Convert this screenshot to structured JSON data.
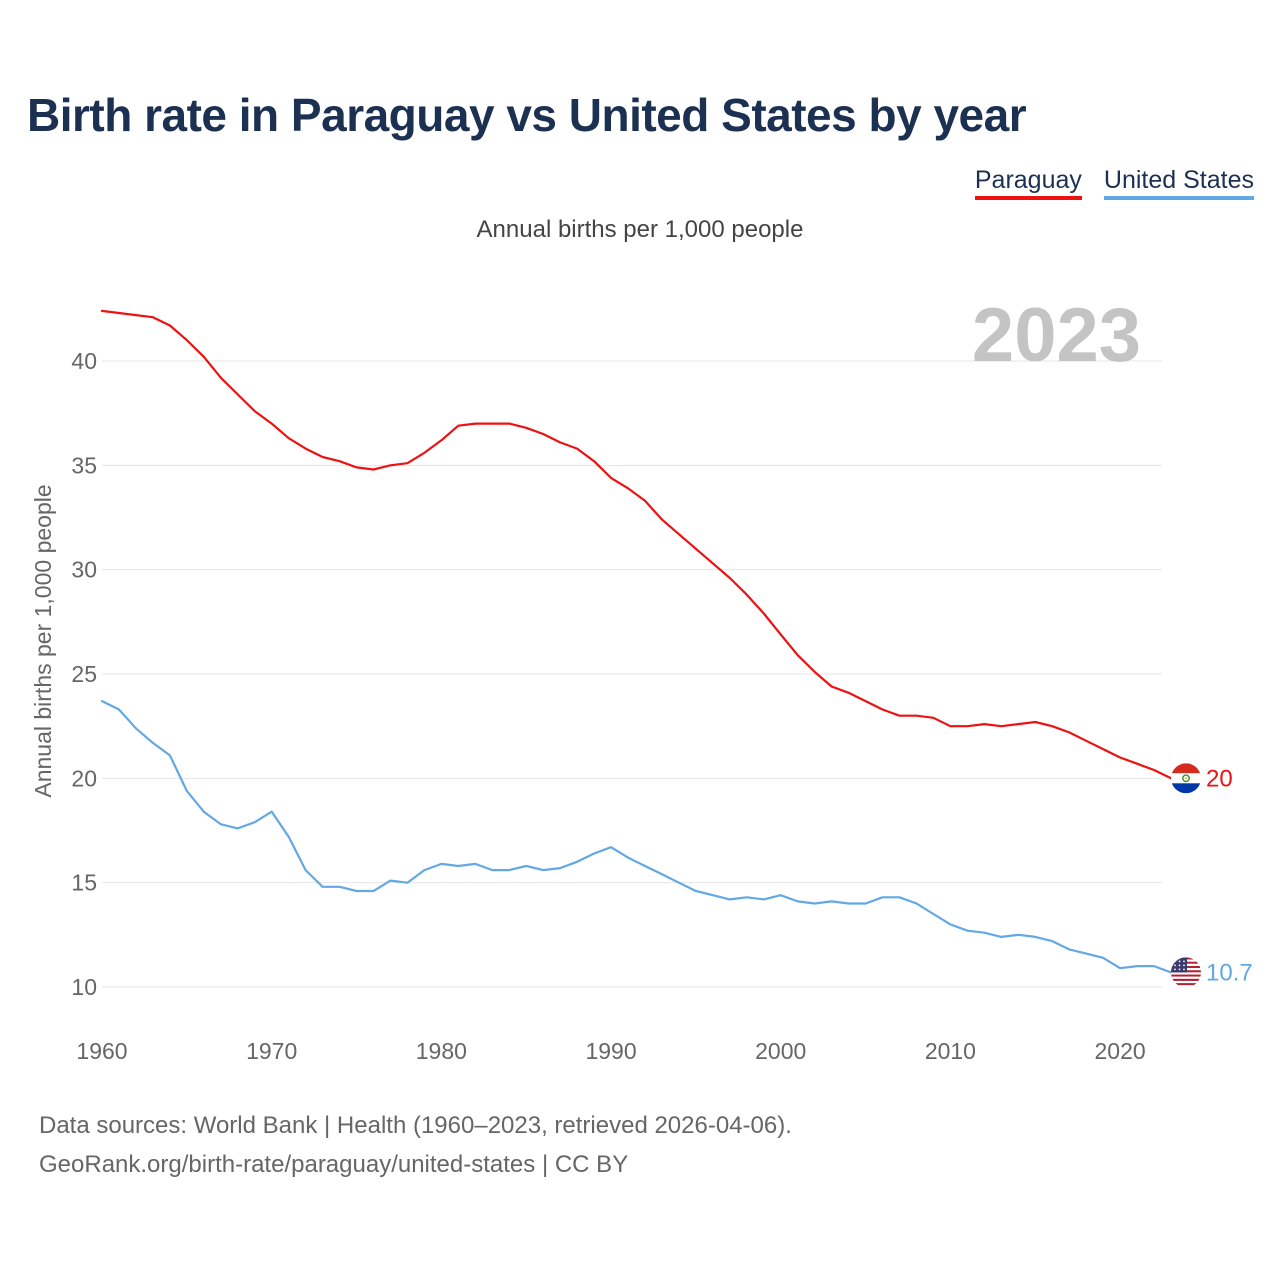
{
  "title": "Birth rate in Paraguay vs United States by year",
  "subtitle": "Annual births per 1,000 people",
  "legend": [
    {
      "label": "Paraguay",
      "color": "#ee1111"
    },
    {
      "label": "United States",
      "color": "#62a8e5"
    }
  ],
  "footer": {
    "line1": "Data sources: World Bank | Health (1960–2023, retrieved 2026-04-06).",
    "line2": "GeoRank.org/birth-rate/paraguay/united-states | CC BY"
  },
  "chart_data": {
    "type": "line",
    "title": "Birth rate in Paraguay vs United States by year",
    "ylabel": "Annual births per 1,000 people",
    "xlabel": "",
    "year_label": "2023",
    "xlim": [
      1960,
      2023
    ],
    "ylim": [
      8,
      43
    ],
    "x_ticks": [
      1960,
      1970,
      1980,
      1990,
      2000,
      2010,
      2020
    ],
    "y_ticks": [
      10,
      15,
      20,
      25,
      30,
      35,
      40
    ],
    "grid": true,
    "x": [
      1960,
      1961,
      1962,
      1963,
      1964,
      1965,
      1966,
      1967,
      1968,
      1969,
      1970,
      1971,
      1972,
      1973,
      1974,
      1975,
      1976,
      1977,
      1978,
      1979,
      1980,
      1981,
      1982,
      1983,
      1984,
      1985,
      1986,
      1987,
      1988,
      1989,
      1990,
      1991,
      1992,
      1993,
      1994,
      1995,
      1996,
      1997,
      1998,
      1999,
      2000,
      2001,
      2002,
      2003,
      2004,
      2005,
      2006,
      2007,
      2008,
      2009,
      2010,
      2011,
      2012,
      2013,
      2014,
      2015,
      2016,
      2017,
      2018,
      2019,
      2020,
      2021,
      2022,
      2023
    ],
    "series": [
      {
        "name": "Paraguay",
        "color": "#ee1111",
        "end_label": "20",
        "flag": "paraguay-flag",
        "values": [
          42.4,
          42.3,
          42.2,
          42.1,
          41.7,
          41.0,
          40.2,
          39.2,
          38.4,
          37.6,
          37.0,
          36.3,
          35.8,
          35.4,
          35.2,
          34.9,
          34.8,
          35.0,
          35.1,
          35.6,
          36.2,
          36.9,
          37.0,
          37.0,
          37.0,
          36.8,
          36.5,
          36.1,
          35.8,
          35.2,
          34.4,
          33.9,
          33.3,
          32.4,
          31.7,
          31.0,
          30.3,
          29.6,
          28.8,
          27.9,
          26.9,
          25.9,
          25.1,
          24.4,
          24.1,
          23.7,
          23.3,
          23.0,
          23.0,
          22.9,
          22.5,
          22.5,
          22.6,
          22.5,
          22.6,
          22.7,
          22.5,
          22.2,
          21.8,
          21.4,
          21.0,
          20.7,
          20.4,
          20.0
        ]
      },
      {
        "name": "United States",
        "color": "#62a8e5",
        "end_label": "10.7",
        "flag": "usa-flag",
        "values": [
          23.7,
          23.3,
          22.4,
          21.7,
          21.1,
          19.4,
          18.4,
          17.8,
          17.6,
          17.9,
          18.4,
          17.2,
          15.6,
          14.8,
          14.8,
          14.6,
          14.6,
          15.1,
          15.0,
          15.6,
          15.9,
          15.8,
          15.9,
          15.6,
          15.6,
          15.8,
          15.6,
          15.7,
          16.0,
          16.4,
          16.7,
          16.2,
          15.8,
          15.4,
          15.0,
          14.6,
          14.4,
          14.2,
          14.3,
          14.2,
          14.4,
          14.1,
          14.0,
          14.1,
          14.0,
          14.0,
          14.3,
          14.3,
          14.0,
          13.5,
          13.0,
          12.7,
          12.6,
          12.4,
          12.5,
          12.4,
          12.2,
          11.8,
          11.6,
          11.4,
          10.9,
          11.0,
          11.0,
          10.7
        ]
      }
    ]
  }
}
